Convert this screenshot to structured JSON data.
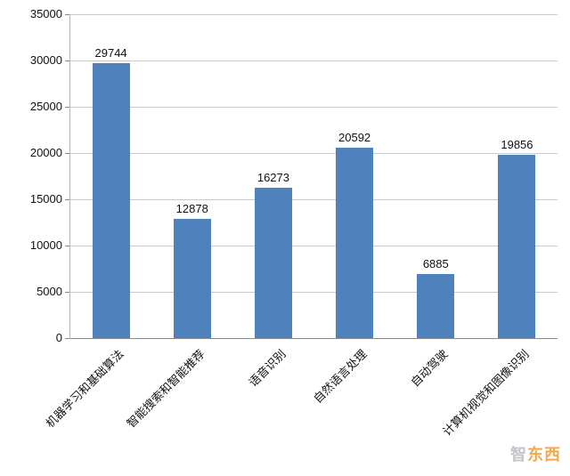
{
  "chart_data": {
    "type": "bar",
    "title": "",
    "xlabel": "",
    "ylabel": "",
    "categories": [
      "机器学习和基础算法",
      "智能搜索和智能推荐",
      "语音识别",
      "自然语言处理",
      "自动驾驶",
      "计算机视觉和图像识别"
    ],
    "values": [
      29744,
      12878,
      16273,
      20592,
      6885,
      19856
    ],
    "value_labels": [
      "29744",
      "12878",
      "16273",
      "20592",
      "6885",
      "19856"
    ],
    "ylim": [
      0,
      35000
    ],
    "ytick_step": 5000,
    "ytick_labels": [
      "0",
      "5000",
      "10000",
      "15000",
      "20000",
      "25000",
      "30000",
      "35000"
    ],
    "grid": true,
    "legend": "none",
    "bar_color": "#4f81bd",
    "grid_color": "#c9c9c9",
    "axis_color": "#898989"
  },
  "watermark": {
    "first": "智",
    "rest": "东西",
    "first_color": "#b8bcc0",
    "rest_color": "#f39a2f"
  }
}
